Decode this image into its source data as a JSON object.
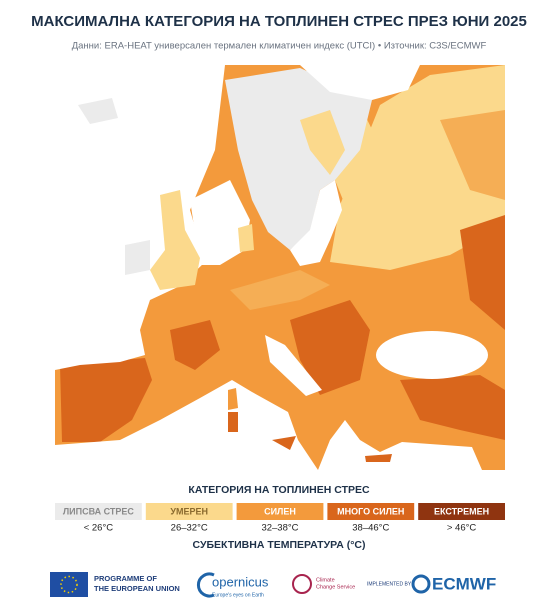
{
  "header": {
    "title": "МАКСИМАЛНА КАТЕГОРИЯ НА ТОПЛИНЕН СТРЕС ПРЕЗ ЮНИ 2025",
    "subtitle": "Данни: ERA-HEAT универсален термален климатичен индекс (UTCI) • Източник: C3S/ECMWF"
  },
  "legend": {
    "title": "КАТЕГОРИЯ НА ТОПЛИНЕН СТРЕС",
    "axis_label": "СУБЕКТИВНА ТЕМПЕРАТУРА (°C)",
    "categories": [
      {
        "label": "ЛИПСВА СТРЕС",
        "range": "< 26°C",
        "color": "#ebebeb",
        "text_color": "#8a8a8a"
      },
      {
        "label": "УМЕРЕН",
        "range": "26–32°C",
        "color": "#fbd98c",
        "text_color": "#8a6a2e"
      },
      {
        "label": "СИЛЕН",
        "range": "32–38°C",
        "color": "#f39a3c",
        "text_color": "#ffffff"
      },
      {
        "label": "МНОГО СИЛЕН",
        "range": "38–46°C",
        "color": "#d9661c",
        "text_color": "#ffffff"
      },
      {
        "label": "ЕКСТРЕМЕН",
        "range": "> 46°C",
        "color": "#8f3410",
        "text_color": "#ffffff"
      }
    ]
  },
  "footer": {
    "eu": [
      "PROGRAMME OF",
      "THE EUROPEAN UNION"
    ],
    "copernicus": "opernicus",
    "copernicus_tag": "Europe's eyes on Earth",
    "c3s": [
      "Climate",
      "Change Service"
    ],
    "implemented": "IMPLEMENTED BY",
    "ecmwf": "ECMWF"
  }
}
